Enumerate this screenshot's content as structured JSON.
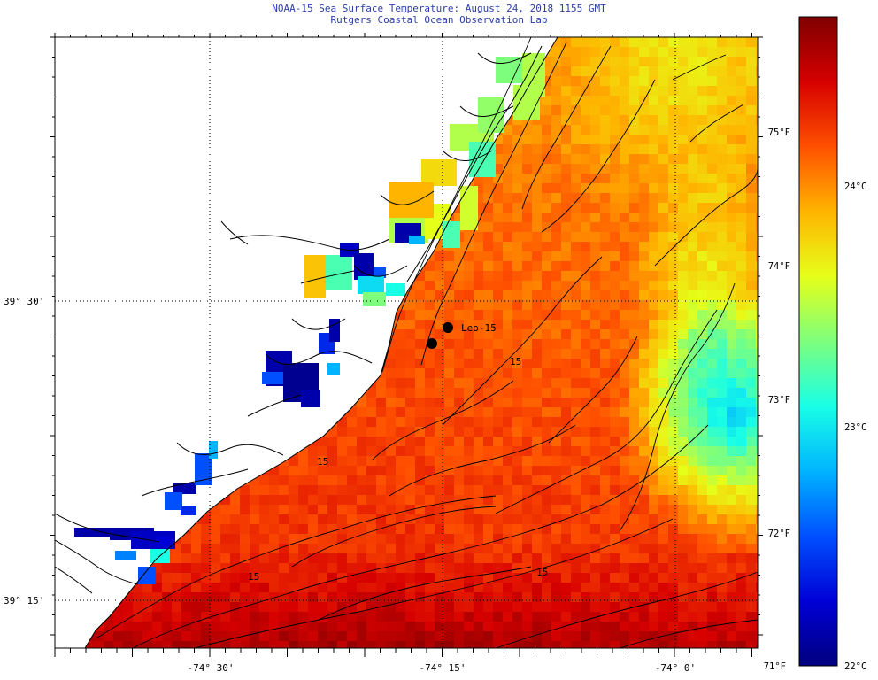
{
  "title_line1": "NOAA-15 Sea Surface Temperature:  August 24, 2018 1155 GMT",
  "title_line2": "Rutgers Coastal Ocean Observation Lab",
  "x_ticks": [
    "-74° 30'",
    "-74° 15'",
    "-74° 0'"
  ],
  "y_ticks": [
    "39° 30'",
    "39° 15'"
  ],
  "station_label": "Leo-15",
  "contour_labels": [
    "15",
    "15",
    "15",
    "15"
  ],
  "colorbar": {
    "labels_f": [
      "75°F",
      "74°F",
      "73°F",
      "72°F",
      "71°F"
    ],
    "labels_c": [
      "24°C",
      "23°C",
      "22°C"
    ],
    "stops": [
      "#00007f",
      "#0000d6",
      "#0050ff",
      "#00b4ff",
      "#19ffe6",
      "#7dff7d",
      "#e6ff19",
      "#ffb400",
      "#ff5000",
      "#d60000",
      "#7f0000"
    ]
  },
  "colors": {
    "title": "#2b3ea6",
    "land": "#ffffff",
    "coast": "#000000"
  }
}
